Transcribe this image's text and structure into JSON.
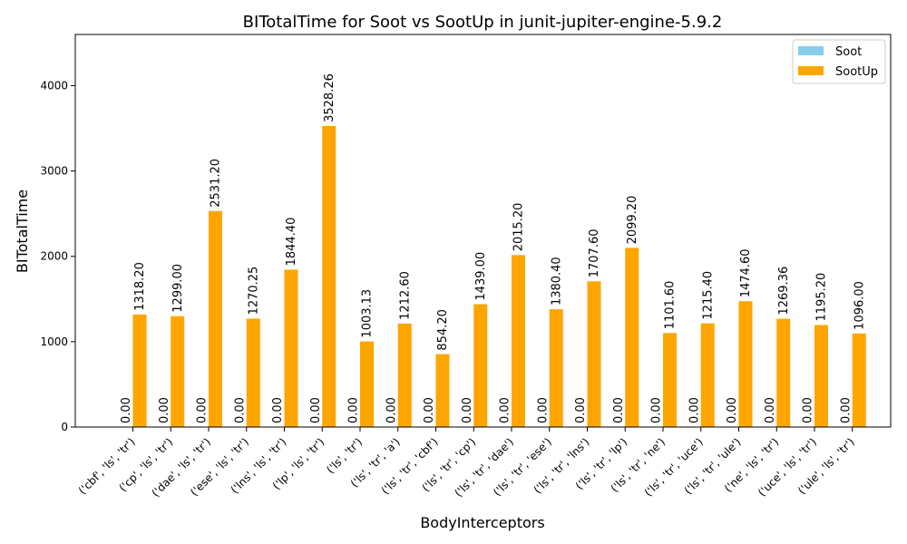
{
  "chart_data": {
    "type": "bar",
    "title": "BITotalTime for Soot vs SootUp in junit-jupiter-engine-5.9.2",
    "xlabel": "BodyInterceptors",
    "ylabel": "BITotalTime",
    "ylim": [
      0,
      4600
    ],
    "yticks": [
      0,
      1000,
      2000,
      3000,
      4000
    ],
    "legend_position": "top-right",
    "categories": [
      "('cbf', 'ls', 'tr')",
      "('cp', 'ls', 'tr')",
      "('dae', 'ls', 'tr')",
      "('ese', 'ls', 'tr')",
      "('lns', 'ls', 'tr')",
      "('lp', 'ls', 'tr')",
      "('ls', 'tr')",
      "('ls', 'tr', 'a')",
      "('ls', 'tr', 'cbf')",
      "('ls', 'tr', 'cp')",
      "('ls', 'tr', 'dae')",
      "('ls', 'tr', 'ese')",
      "('ls', 'tr', 'lns')",
      "('ls', 'tr', 'lp')",
      "('ls', 'tr', 'ne')",
      "('ls', 'tr', 'uce')",
      "('ls', 'tr', 'ule')",
      "('ne', 'ls', 'tr')",
      "('uce', 'ls', 'tr')",
      "('ule', 'ls', 'tr')"
    ],
    "series": [
      {
        "name": "Soot",
        "color": "#87ceeb",
        "values": [
          0,
          0,
          0,
          0,
          0,
          0,
          0,
          0,
          0,
          0,
          0,
          0,
          0,
          0,
          0,
          0,
          0,
          0,
          0,
          0
        ],
        "labels": [
          "0.00",
          "0.00",
          "0.00",
          "0.00",
          "0.00",
          "0.00",
          "0.00",
          "0.00",
          "0.00",
          "0.00",
          "0.00",
          "0.00",
          "0.00",
          "0.00",
          "0.00",
          "0.00",
          "0.00",
          "0.00",
          "0.00",
          "0.00"
        ]
      },
      {
        "name": "SootUp",
        "color": "#ffa500",
        "values": [
          1318.2,
          1299.0,
          2531.2,
          1270.25,
          1844.4,
          3528.26,
          1003.13,
          1212.6,
          854.2,
          1439.0,
          2015.2,
          1380.4,
          1707.6,
          2099.2,
          1101.6,
          1215.4,
          1474.6,
          1269.36,
          1195.2,
          1096.0
        ],
        "labels": [
          "1318.20",
          "1299.00",
          "2531.20",
          "1270.25",
          "1844.40",
          "3528.26",
          "1003.13",
          "1212.60",
          "854.20",
          "1439.00",
          "2015.20",
          "1380.40",
          "1707.60",
          "2099.20",
          "1101.60",
          "1215.40",
          "1474.60",
          "1269.36",
          "1195.20",
          "1096.00"
        ]
      }
    ]
  }
}
